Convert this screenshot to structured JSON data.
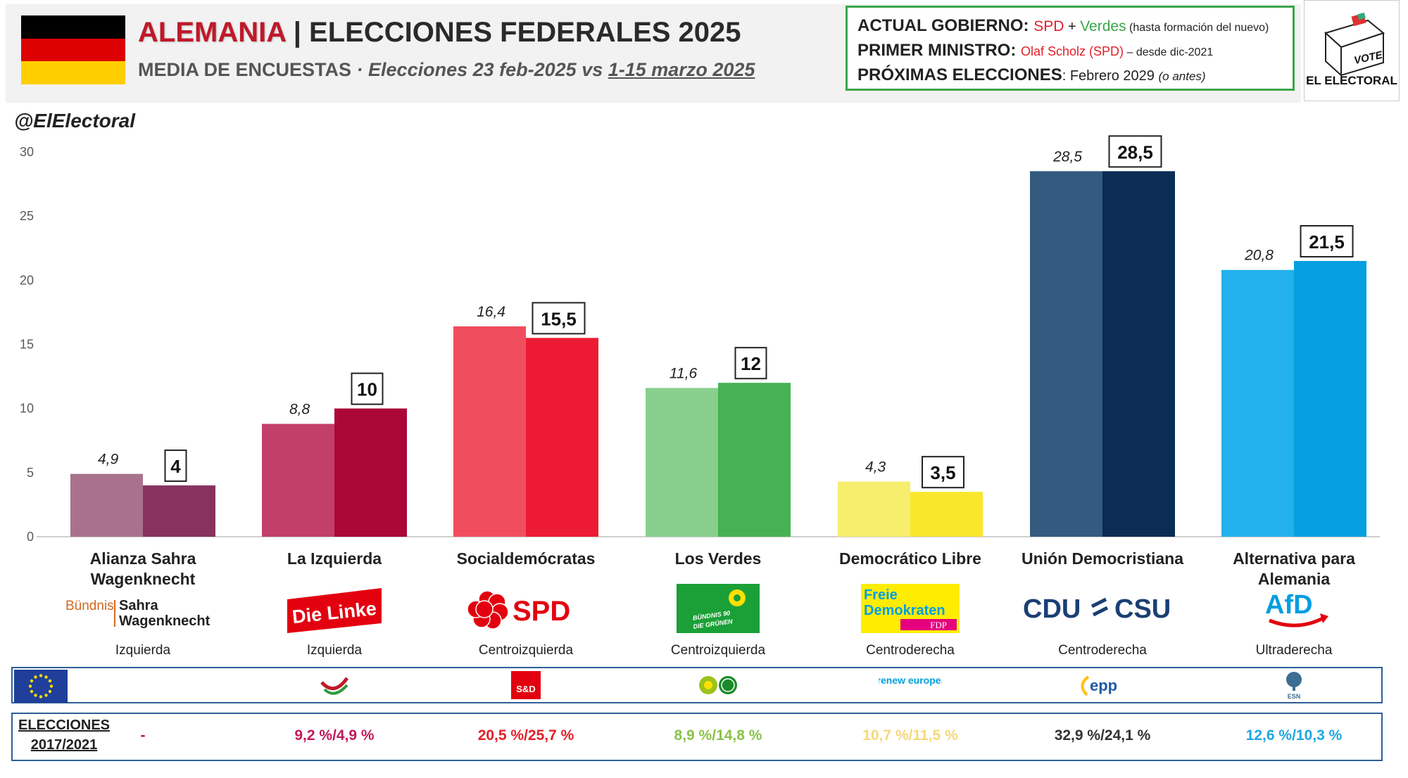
{
  "header": {
    "country": "ALEMANIA",
    "title_rest": " | ELECCIONES FEDERALES 2025",
    "subtitle_main": "MEDIA DE ENCUESTAS",
    "subtitle_dot": " · ",
    "subtitle_italic": "Elecciones 23 feb-2025 vs ",
    "subtitle_underline": "1-15 marzo 2025",
    "flag_colors": [
      "#000000",
      "#dd0000",
      "#ffce00"
    ]
  },
  "government": {
    "gov_key": "ACTUAL GOBIERNO: ",
    "gov_spd": "SPD",
    "gov_plus": " + ",
    "gov_verdes": "Verdes",
    "gov_note": " (hasta formación del nuevo)",
    "pm_key": "PRIMER MINISTRO: ",
    "pm_name": "Olaf Scholz (SPD)",
    "pm_since": " – desde dic-2021",
    "next_key": "PRÓXIMAS ELECCIONES",
    "next_colon": ": ",
    "next_date": "Febrero 2029 ",
    "next_note": "(o antes)"
  },
  "brand": {
    "vote": "VOTE",
    "name": "EL ELECTORAL"
  },
  "handle": "@ElElectoral",
  "chart_data": {
    "type": "bar",
    "categories": [
      "Alianza Sahra Wagenknecht",
      "La Izquierda",
      "Socialdemócratas",
      "Los Verdes",
      "Democrático Libre",
      "Unión Democristiana",
      "Alternativa para Alemania"
    ],
    "series": [
      {
        "name": "",
        "values": [
          4.9,
          8.8,
          16.4,
          11.6,
          4.3,
          28.5,
          20.8
        ],
        "label_style": "italic"
      },
      {
        "name": "",
        "values": [
          4,
          10,
          15.5,
          12,
          3.5,
          28.5,
          21.5
        ],
        "label_style": "boxed-bold"
      }
    ],
    "value_labels": {
      "first": [
        "4,9",
        "8,8",
        "16,4",
        "11,6",
        "4,3",
        "28,5",
        "20,8"
      ],
      "second": [
        "4",
        "10",
        "15,5",
        "12",
        "3,5",
        "28,5",
        "21,5"
      ]
    },
    "colors_first": [
      "#a8728c",
      "#c23f6a",
      "#f04e5e",
      "#88cf8e",
      "#f7ee6e",
      "#345a80",
      "#22b1ec"
    ],
    "colors_second": [
      "#87335e",
      "#ab0838",
      "#ec1b33",
      "#45b254",
      "#f9e72c",
      "#0b2c55",
      "#06a0e0"
    ],
    "ylim": [
      0,
      30
    ],
    "yticks": [
      "0",
      "5",
      "10",
      "15",
      "20",
      "25",
      "30"
    ],
    "grid": false,
    "legend": "none"
  },
  "parties": [
    {
      "name_lines": [
        "Alianza Sahra",
        "Wagenknecht"
      ],
      "ideology": "Izquierda",
      "logo_text_1": "Bündnis",
      "logo_text_2": "Sahra",
      "logo_text_3": "Wagenknecht"
    },
    {
      "name_lines": [
        "La Izquierda"
      ],
      "ideology": "Izquierda",
      "logo_text": "Die Linke"
    },
    {
      "name_lines": [
        "Socialdemócratas"
      ],
      "ideology": "Centroizquierda",
      "logo_text": "SPD"
    },
    {
      "name_lines": [
        "Los Verdes"
      ],
      "ideology": "Centroizquierda",
      "logo_text_1": "BÜNDNIS 90",
      "logo_text_2": "DIE GRÜNEN"
    },
    {
      "name_lines": [
        "Democrático Libre"
      ],
      "ideology": "Centroderecha",
      "logo_text_1": "Freie",
      "logo_text_2": "Demokraten",
      "logo_text_3": "FDP"
    },
    {
      "name_lines": [
        "Unión Democristiana"
      ],
      "ideology": "Centroderecha",
      "logo_text_1": "CDU",
      "logo_text_2": "CSU"
    },
    {
      "name_lines": [
        "Alternativa para",
        "Alemania"
      ],
      "ideology": "Ultraderecha",
      "logo_text": "AfD"
    }
  ],
  "eu_groups": [
    "",
    "",
    "S&D",
    "",
    "renew europe.",
    "epp",
    "ESN"
  ],
  "previous_elections": {
    "label_line1": "ELECCIONES",
    "label_line2": "2017/2021",
    "values": [
      "-",
      "9,2 %/4,9 %",
      "20,5 %/25,7 %",
      "8,9 %/14,8 %",
      "10,7 %/11,5 %",
      "32,9 %/24,1 %",
      "12,6 %/10,3 %"
    ],
    "colors": [
      "#c0182a",
      "#c2185b",
      "#e0202a",
      "#8bc34a",
      "#f5d87a",
      "#333333",
      "#1ea7e1"
    ]
  }
}
